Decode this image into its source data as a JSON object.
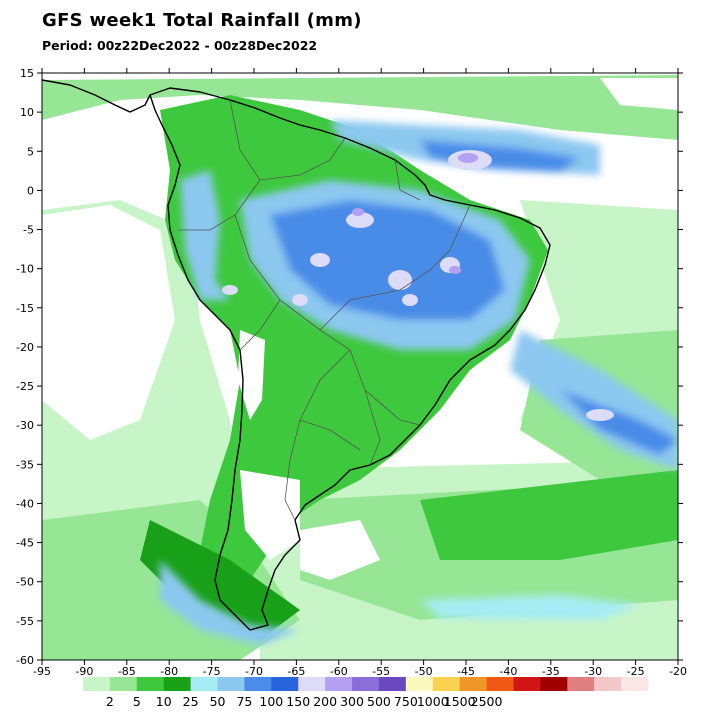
{
  "title": "GFS week1 Total Rainfall (mm)",
  "period": "Period: 00z22Dec2022 - 00z28Dec2022",
  "map": {
    "lon_range": [
      -95,
      -20
    ],
    "lat_range": [
      -60,
      15
    ],
    "lon_ticks": [
      -95,
      -90,
      -85,
      -80,
      -75,
      -70,
      -65,
      -60,
      -55,
      -50,
      -45,
      -40,
      -35,
      -30,
      -25,
      -20
    ],
    "lat_ticks": [
      15,
      10,
      5,
      0,
      -5,
      -10,
      -15,
      -20,
      -25,
      -30,
      -35,
      -40,
      -45,
      -50,
      -55,
      -60
    ]
  },
  "legend": {
    "thresholds": [
      "2",
      "5",
      "10",
      "25",
      "50",
      "75",
      "100",
      "150",
      "200",
      "300",
      "500",
      "750",
      "1000",
      "1500",
      "2500"
    ],
    "colors": [
      "#c8f5c8",
      "#96e696",
      "#3ec83e",
      "#18a018",
      "#a6ecf4",
      "#8cc8f0",
      "#4a8ce8",
      "#2864dc",
      "#dcdcf8",
      "#b4a0f0",
      "#8c6ed8",
      "#6a48c0",
      "#fafabe",
      "#f8d250",
      "#f09628",
      "#f05a14",
      "#d21414",
      "#a00000",
      "#e08080",
      "#f4c8c8",
      "#fae6e6"
    ]
  }
}
